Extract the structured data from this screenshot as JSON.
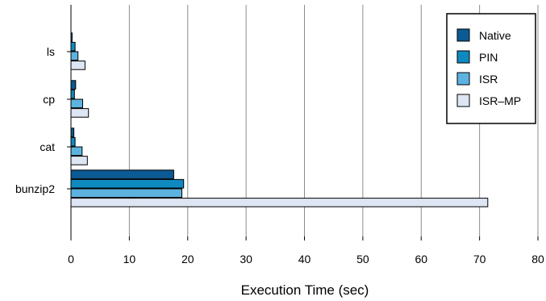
{
  "chart_data": {
    "type": "bar",
    "orientation": "horizontal",
    "title": "",
    "xlabel": "Execution Time (sec)",
    "ylabel": "",
    "xlim": [
      0,
      80
    ],
    "xticks": [
      "0",
      "10",
      "20",
      "30",
      "40",
      "50",
      "60",
      "70",
      "80"
    ],
    "categories": [
      "ls",
      "cp",
      "cat",
      "bunzip2"
    ],
    "grid": "vertical",
    "legend_position": "top-right",
    "series": [
      {
        "name": "Native",
        "color": "#0b5a93",
        "values": [
          0.2,
          0.8,
          0.5,
          17.6
        ]
      },
      {
        "name": "PIN",
        "color": "#0e8ac0",
        "values": [
          0.7,
          0.6,
          0.7,
          19.3
        ]
      },
      {
        "name": "ISR",
        "color": "#5db3df",
        "values": [
          1.2,
          2.0,
          1.9,
          19.0
        ]
      },
      {
        "name": "ISR–MP",
        "color": "#dde6f2",
        "values": [
          2.4,
          3.0,
          2.8,
          71.4
        ]
      }
    ]
  }
}
